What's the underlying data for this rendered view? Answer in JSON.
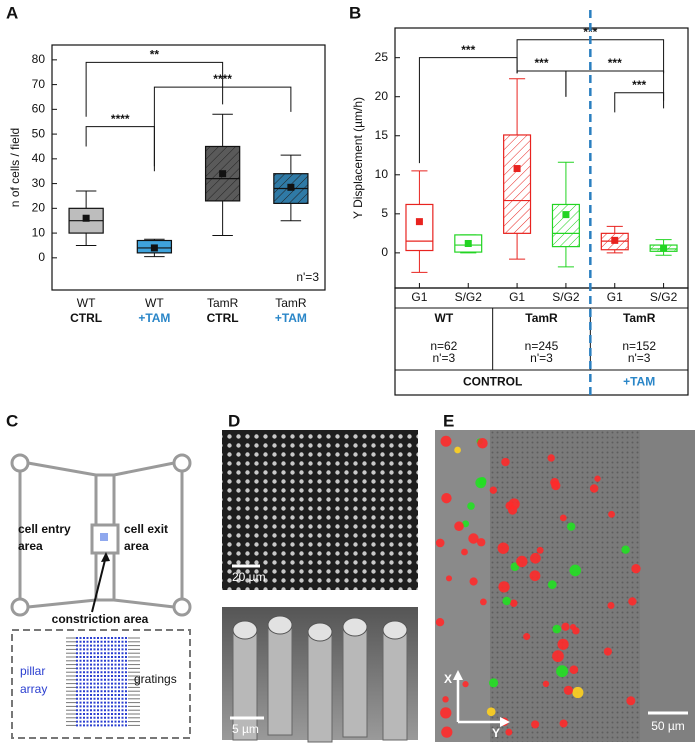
{
  "chart_data": [
    {
      "type": "box",
      "panel_label": "A",
      "ylabel": "n of cells / field",
      "categories": [
        "WT",
        "WT",
        "TamR",
        "TamR"
      ],
      "subcategories": [
        "CTRL",
        "+TAM",
        "CTRL",
        "+TAM"
      ],
      "subcategory_colors": [
        "#111111",
        "#2a86c8",
        "#111111",
        "#2a86c8"
      ],
      "box_style": "filled",
      "mean_color": "#111111",
      "boxes": [
        {
          "min": 5,
          "q1": 10,
          "median": 15,
          "q3": 20,
          "max": 27,
          "mean": 16,
          "color": "#bdbdbd",
          "hatch": false
        },
        {
          "min": 0.5,
          "q1": 2,
          "median": 4,
          "q3": 7,
          "max": 7.5,
          "mean": 4,
          "color": "#3fa3dc",
          "hatch": false
        },
        {
          "min": 9,
          "q1": 23,
          "median": 32,
          "q3": 45,
          "max": 58,
          "mean": 34,
          "color": "#5a5a5a",
          "hatch": true
        },
        {
          "min": 15,
          "q1": 22,
          "median": 28,
          "q3": 34,
          "max": 41.5,
          "mean": 28.5,
          "color": "#2f7aa6",
          "hatch": true
        }
      ],
      "ylim": [
        -13,
        86
      ],
      "yticks": [
        0,
        10,
        20,
        30,
        40,
        50,
        60,
        70,
        80
      ],
      "brackets": [
        {
          "text": "**",
          "from": 0,
          "to": 2
        },
        {
          "text": "****",
          "from": 0,
          "to": 1
        },
        {
          "text": "****",
          "from": 1,
          "to": 3
        }
      ],
      "annotation": "n'=3"
    },
    {
      "type": "box",
      "panel_label": "B",
      "ylabel": "Y Displacement (µm/h)",
      "categories": [
        "G1",
        "S/G2",
        "G1",
        "S/G2",
        "G1",
        "S/G2"
      ],
      "box_style": "outline",
      "boxes": [
        {
          "min": -2.5,
          "q1": 0.3,
          "median": 1.5,
          "q3": 6.2,
          "max": 10.5,
          "mean": 4,
          "color": "#e8231f",
          "hatch": false
        },
        {
          "min": 0,
          "q1": 0.1,
          "median": 1,
          "q3": 2.3,
          "max": 2.3,
          "mean": 1.2,
          "color": "#22d422",
          "hatch": false
        },
        {
          "min": -0.8,
          "q1": 2.5,
          "median": 6.7,
          "q3": 15.1,
          "max": 22.3,
          "mean": 10.8,
          "color": "#e8231f",
          "hatch": true
        },
        {
          "min": -1.8,
          "q1": 0.8,
          "median": 2.5,
          "q3": 6.2,
          "max": 11.6,
          "mean": 4.9,
          "color": "#22d422",
          "hatch": true
        },
        {
          "min": 0,
          "q1": 0.4,
          "median": 1.5,
          "q3": 2.5,
          "max": 3.4,
          "mean": 1.6,
          "color": "#e8231f",
          "hatch": true
        },
        {
          "min": -0.3,
          "q1": 0.2,
          "median": 0.5,
          "q3": 1,
          "max": 1.7,
          "mean": 0.6,
          "color": "#22d422",
          "hatch": true
        }
      ],
      "ylim": [
        -4.5,
        28.8
      ],
      "yticks": [
        0,
        5,
        10,
        15,
        20,
        25
      ],
      "brackets": [
        {
          "text": "***",
          "from": 0,
          "to": 2
        },
        {
          "text": "***",
          "from": 2,
          "to": 5
        },
        {
          "text": "***",
          "from": 2,
          "to": 3
        },
        {
          "text": "***",
          "from": 3,
          "to": 5
        },
        {
          "text": "***",
          "from": 4,
          "to": 5
        }
      ],
      "groups": [
        {
          "label": "WT",
          "n": "n=62",
          "n_prime": "n'=3"
        },
        {
          "label": "TamR",
          "n": "n=245",
          "n_prime": "n'=3"
        },
        {
          "label": "TamR",
          "n": "n=152",
          "n_prime": "n'=3"
        }
      ],
      "conditions": [
        {
          "label": "CONTROL",
          "color": "#111111"
        },
        {
          "label": "+TAM",
          "color": "#2a86c8"
        }
      ],
      "divider_color": "#2a7fc0"
    }
  ],
  "panels": {
    "C": {
      "label": "C",
      "entry": [
        "cell entry",
        "area"
      ],
      "exit": [
        "cell exit",
        "area"
      ],
      "constriction": "constriction area",
      "pillar": [
        "pillar",
        "array"
      ],
      "gratings": "gratings"
    },
    "D": {
      "label": "D",
      "scale_top": "20 µm",
      "scale_bottom": "5 µm"
    },
    "E": {
      "label": "E",
      "axis_x": "X",
      "axis_y": "Y",
      "scale": "50 µm"
    }
  }
}
